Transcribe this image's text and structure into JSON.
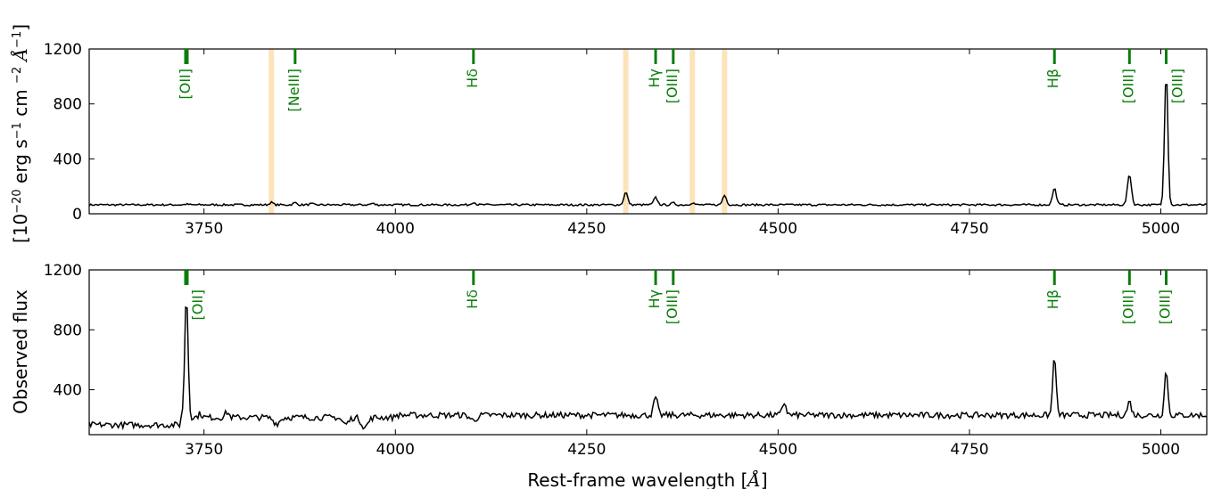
{
  "chart_data": [
    {
      "type": "line",
      "panel": "top",
      "xlim": [
        3600,
        5060
      ],
      "ylim": [
        0,
        1200
      ],
      "yticks": [
        "0",
        "400",
        "800",
        "1200"
      ],
      "xticks": [
        "3750",
        "4000",
        "4250",
        "4500",
        "4750",
        "5000"
      ],
      "x_tick_values": [
        3750,
        4000,
        4250,
        4500,
        4750,
        5000
      ],
      "y_tick_values": [
        0,
        400,
        800,
        1200
      ],
      "ylabel": "[10−20 erg s−1 cm −2 Å−1]",
      "continuum_level": 65,
      "masked_regions": [
        3838,
        4301,
        4388,
        4430
      ],
      "peaks": [
        {
          "x": 3727,
          "y": 70
        },
        {
          "x": 3838,
          "y": 82
        },
        {
          "x": 3869,
          "y": 80
        },
        {
          "x": 3890,
          "y": 72
        },
        {
          "x": 3970,
          "y": 75
        },
        {
          "x": 4102,
          "y": 85
        },
        {
          "x": 4301,
          "y": 155
        },
        {
          "x": 4340,
          "y": 118
        },
        {
          "x": 4363,
          "y": 78
        },
        {
          "x": 4388,
          "y": 80
        },
        {
          "x": 4430,
          "y": 135
        },
        {
          "x": 4861,
          "y": 185
        },
        {
          "x": 4959,
          "y": 290
        },
        {
          "x": 5007,
          "y": 1050
        }
      ],
      "emission_lines": [
        {
          "x": 3727,
          "label": "[OII]",
          "thick": true,
          "label_side": "left"
        },
        {
          "x": 3869,
          "label": "[NeIII]",
          "thick": false,
          "label_side": "left"
        },
        {
          "x": 4102,
          "label": "Hδ",
          "thick": false,
          "label_side": "left"
        },
        {
          "x": 4340,
          "label": "Hγ",
          "thick": false,
          "label_side": "left"
        },
        {
          "x": 4363,
          "label": "[OIII]",
          "thick": false,
          "label_side": "left"
        },
        {
          "x": 4861,
          "label": "Hβ",
          "thick": false,
          "label_side": "left"
        },
        {
          "x": 4959,
          "label": "[OIII]",
          "thick": false,
          "label_side": "left"
        },
        {
          "x": 5007,
          "label": "[OIII]",
          "thick": false,
          "label_side": "right"
        }
      ]
    },
    {
      "type": "line",
      "panel": "bottom",
      "xlim": [
        3600,
        5060
      ],
      "ylim": [
        100,
        1200
      ],
      "yticks": [
        "400",
        "800",
        "1200"
      ],
      "xticks": [
        "3750",
        "4000",
        "4250",
        "4500",
        "4750",
        "5000"
      ],
      "x_tick_values": [
        3750,
        4000,
        4250,
        4500,
        4750,
        5000
      ],
      "y_tick_values": [
        400,
        800,
        1200
      ],
      "ylabel": "Observed flux",
      "xlabel": "Rest-frame wavelength [Å]",
      "continuum_level": 210,
      "peaks": [
        {
          "x": 3727,
          "y": 1040
        },
        {
          "x": 3745,
          "y": 240
        },
        {
          "x": 3780,
          "y": 250
        },
        {
          "x": 4340,
          "y": 335
        },
        {
          "x": 4508,
          "y": 300
        },
        {
          "x": 4861,
          "y": 620
        },
        {
          "x": 4959,
          "y": 305
        },
        {
          "x": 5007,
          "y": 520
        }
      ],
      "dips": [
        {
          "x": 3960,
          "y": 150
        },
        {
          "x": 3845,
          "y": 175
        },
        {
          "x": 4102,
          "y": 180
        },
        {
          "x": 3935,
          "y": 170
        }
      ],
      "emission_lines": [
        {
          "x": 3727,
          "label": "[OII]",
          "thick": true,
          "label_side": "right"
        },
        {
          "x": 4102,
          "label": "Hδ",
          "thick": false,
          "label_side": "left"
        },
        {
          "x": 4340,
          "label": "Hγ",
          "thick": false,
          "label_side": "left"
        },
        {
          "x": 4363,
          "label": "[OIII]",
          "thick": false,
          "label_side": "left"
        },
        {
          "x": 4861,
          "label": "Hβ",
          "thick": false,
          "label_side": "left"
        },
        {
          "x": 4959,
          "label": "[OIII]",
          "thick": false,
          "label_side": "left"
        },
        {
          "x": 5007,
          "label": "[OIII]",
          "thick": false,
          "label_side": "left"
        }
      ]
    }
  ],
  "colors": {
    "spectrum": "#000000",
    "lines": "#0a7d0a",
    "mask": "#fde3b8"
  }
}
